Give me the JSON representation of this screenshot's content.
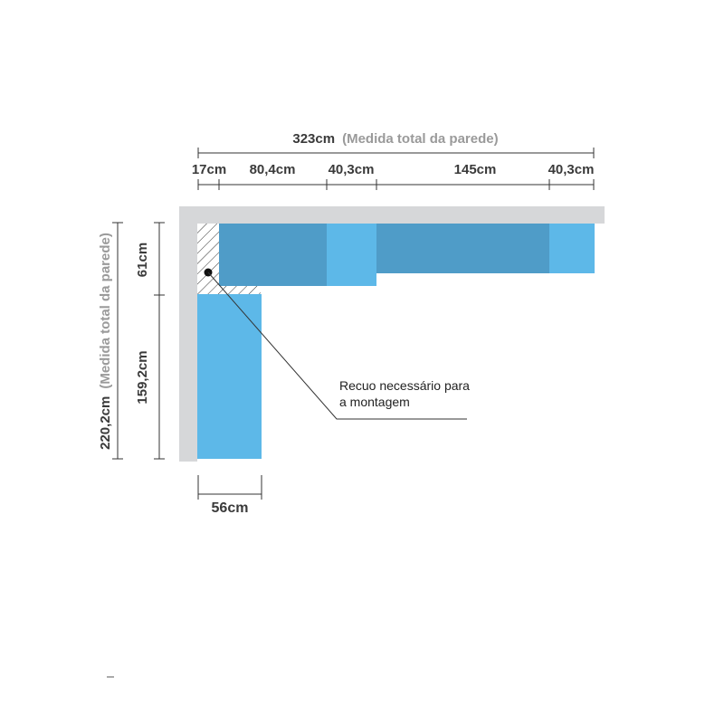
{
  "top": {
    "total_value": "323cm",
    "total_note": "(Medida total da parede)",
    "segments": [
      "17cm",
      "80,4cm",
      "40,3cm",
      "145cm",
      "40,3cm"
    ]
  },
  "left": {
    "total_value": "220,2cm",
    "total_note": "(Medida total da parede)",
    "segments": [
      "61cm",
      "159,2cm"
    ]
  },
  "bottom": {
    "width": "56cm"
  },
  "annotation": {
    "line1": "Recuo necessário para",
    "line2": "a montagem"
  },
  "colors": {
    "wall": "#d6d7d9",
    "module_dark": "#4f9cc8",
    "module_light": "#5db8e8",
    "dimension_line": "#333333"
  }
}
